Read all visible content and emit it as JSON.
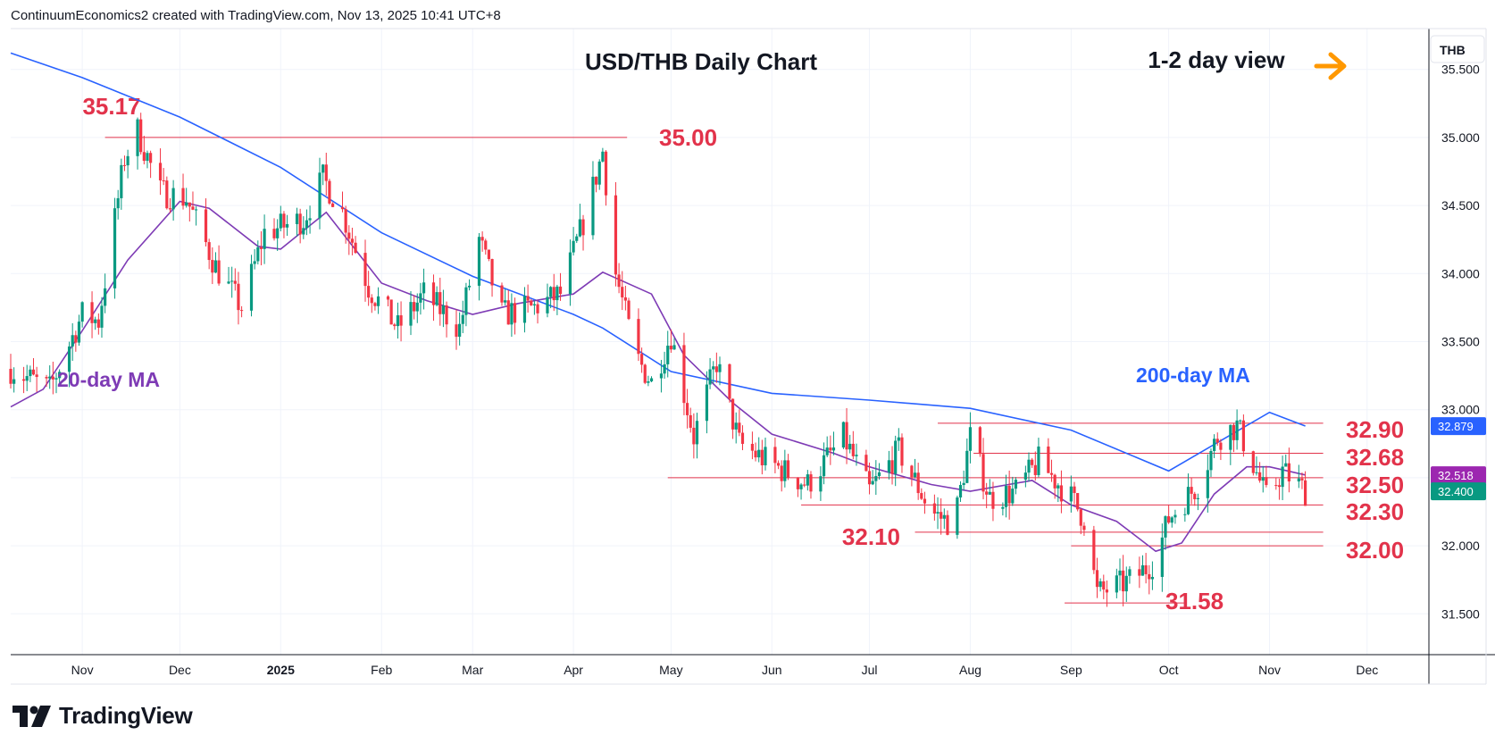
{
  "attribution": "ContinuumEconomics2 created with TradingView.com, Nov 13, 2025 10:41 UTC+8",
  "brand": "TradingView",
  "chart_data": {
    "type": "candlestick",
    "title": "USD/THB Daily Chart",
    "annotation": "1-2 day view",
    "annotation_icon": "arrow-right-icon",
    "currency_label": "THB",
    "ylim": [
      31.2,
      35.8
    ],
    "y_ticks": [
      "35.500",
      "35.000",
      "34.500",
      "34.000",
      "33.500",
      "33.000",
      "32.500",
      "32.000",
      "31.500"
    ],
    "x_ticks": [
      {
        "label": "Nov",
        "date": "2024-11-01"
      },
      {
        "label": "Dec",
        "date": "2024-12-01"
      },
      {
        "label": "2025",
        "date": "2025-01-01",
        "bold": true
      },
      {
        "label": "Feb",
        "date": "2025-02-01"
      },
      {
        "label": "Mar",
        "date": "2025-03-01"
      },
      {
        "label": "Apr",
        "date": "2025-04-01"
      },
      {
        "label": "May",
        "date": "2025-05-01"
      },
      {
        "label": "Jun",
        "date": "2025-06-01"
      },
      {
        "label": "Jul",
        "date": "2025-07-01"
      },
      {
        "label": "Aug",
        "date": "2025-08-01"
      },
      {
        "label": "Sep",
        "date": "2025-09-01"
      },
      {
        "label": "Oct",
        "date": "2025-10-01"
      },
      {
        "label": "Nov",
        "date": "2025-11-01"
      },
      {
        "label": "Dec",
        "date": "2025-12-01"
      }
    ],
    "x_range": [
      "2024-10-10",
      "2025-12-20"
    ],
    "levels": [
      {
        "value": 35.0,
        "label": "35.00",
        "from": "2024-11-08",
        "to": "2025-04-12"
      },
      {
        "value": 32.9,
        "label": "32.90",
        "from": "2025-07-22",
        "to": "2025-11-12"
      },
      {
        "value": 32.68,
        "label": "32.68",
        "from": "2025-08-02",
        "to": "2025-11-12"
      },
      {
        "value": 32.5,
        "label": "32.50",
        "from": "2025-04-30",
        "to": "2025-11-12"
      },
      {
        "value": 32.3,
        "label": "32.30",
        "from": "2025-06-10",
        "to": "2025-11-12"
      },
      {
        "value": 32.1,
        "label": "32.10",
        "from": "2025-07-15",
        "to": "2025-11-12"
      },
      {
        "value": 32.0,
        "label": "32.00",
        "from": "2025-09-01",
        "to": "2025-11-12"
      },
      {
        "value": 31.58,
        "label": "31.58",
        "from": "2025-08-30",
        "to": "2025-10-01"
      }
    ],
    "peak_label": {
      "value": 35.17,
      "label": "35.17",
      "date": "2024-11-18"
    },
    "price_tags": [
      {
        "value": 32.879,
        "label": "32.879",
        "color": "#2962ff"
      },
      {
        "value": 32.518,
        "label": "32.518",
        "color": "#9c27b0"
      },
      {
        "value": 32.4,
        "label": "32.400",
        "color": "#089981"
      }
    ],
    "series": [
      {
        "name": "200-day MA",
        "color": "#2962ff",
        "points": [
          [
            "2024-10-10",
            35.62
          ],
          [
            "2024-11-01",
            35.44
          ],
          [
            "2024-12-01",
            35.15
          ],
          [
            "2025-01-01",
            34.78
          ],
          [
            "2025-02-01",
            34.3
          ],
          [
            "2025-03-01",
            33.98
          ],
          [
            "2025-04-01",
            33.7
          ],
          [
            "2025-04-10",
            33.6
          ],
          [
            "2025-05-01",
            33.28
          ],
          [
            "2025-06-01",
            33.12
          ],
          [
            "2025-07-01",
            33.07
          ],
          [
            "2025-08-01",
            33.01
          ],
          [
            "2025-09-01",
            32.85
          ],
          [
            "2025-10-01",
            32.55
          ],
          [
            "2025-11-01",
            32.98
          ],
          [
            "2025-11-12",
            32.88
          ]
        ]
      },
      {
        "name": "20-day MA",
        "color": "#7e3bb5",
        "points": [
          [
            "2024-10-10",
            33.02
          ],
          [
            "2024-10-20",
            33.15
          ],
          [
            "2024-11-01",
            33.58
          ],
          [
            "2024-11-15",
            34.1
          ],
          [
            "2024-12-01",
            34.53
          ],
          [
            "2024-12-10",
            34.48
          ],
          [
            "2024-12-25",
            34.2
          ],
          [
            "2025-01-01",
            34.18
          ],
          [
            "2025-01-15",
            34.45
          ],
          [
            "2025-02-01",
            33.93
          ],
          [
            "2025-02-15",
            33.8
          ],
          [
            "2025-03-01",
            33.7
          ],
          [
            "2025-03-15",
            33.78
          ],
          [
            "2025-04-01",
            33.85
          ],
          [
            "2025-04-10",
            34.01
          ],
          [
            "2025-04-25",
            33.85
          ],
          [
            "2025-05-05",
            33.4
          ],
          [
            "2025-05-20",
            33.05
          ],
          [
            "2025-06-01",
            32.82
          ],
          [
            "2025-06-20",
            32.68
          ],
          [
            "2025-07-01",
            32.58
          ],
          [
            "2025-07-20",
            32.45
          ],
          [
            "2025-08-01",
            32.4
          ],
          [
            "2025-08-20",
            32.48
          ],
          [
            "2025-09-01",
            32.3
          ],
          [
            "2025-09-15",
            32.18
          ],
          [
            "2025-09-27",
            31.96
          ],
          [
            "2025-10-05",
            32.02
          ],
          [
            "2025-10-15",
            32.38
          ],
          [
            "2025-10-25",
            32.58
          ],
          [
            "2025-11-01",
            32.58
          ],
          [
            "2025-11-12",
            32.52
          ]
        ]
      }
    ],
    "ohlc_approx": [
      {
        "date": "2024-11-18",
        "high": 35.17
      },
      {
        "date": "2025-04-10",
        "high": 35.0
      },
      {
        "date": "2025-09-10",
        "low": 31.58
      },
      {
        "date": "2025-11-12",
        "close": 32.4
      }
    ]
  },
  "labels": {
    "ma20": "20-day MA",
    "ma200": "200-day MA"
  },
  "colors": {
    "up": "#089981",
    "down": "#f23645",
    "level": "#e2334b",
    "arrow": "#ff9800",
    "grid": "#f0f3fa"
  }
}
